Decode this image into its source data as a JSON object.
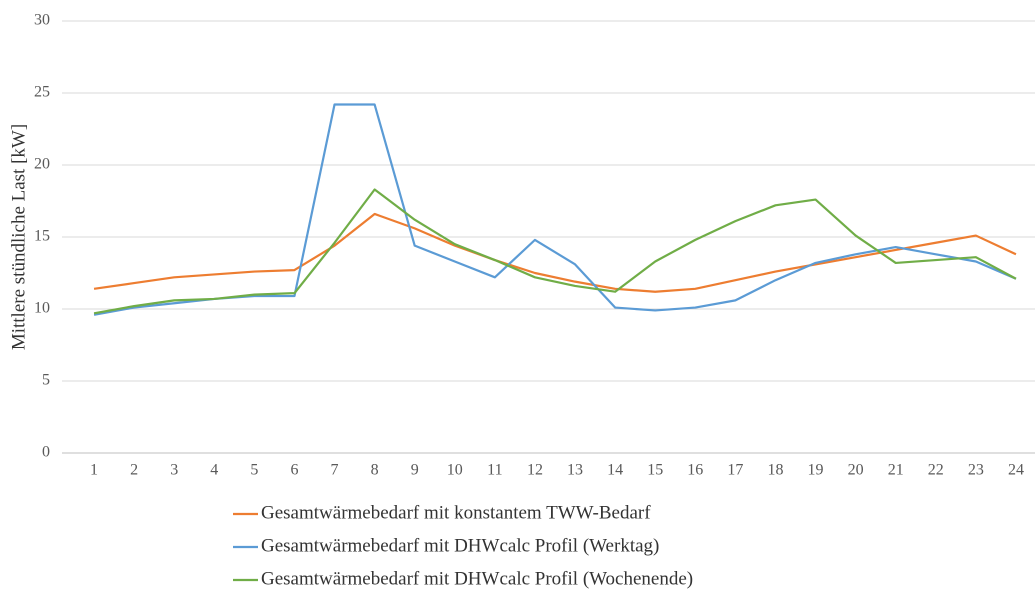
{
  "chart_data": {
    "type": "line",
    "y_label": "Mittlere stündliche Last [kW]",
    "categories": [
      "1",
      "2",
      "3",
      "4",
      "5",
      "6",
      "7",
      "8",
      "9",
      "10",
      "11",
      "12",
      "13",
      "14",
      "15",
      "16",
      "17",
      "18",
      "19",
      "20",
      "21",
      "22",
      "23",
      "24"
    ],
    "series": [
      {
        "name": "Gesamtwärmebedarf mit konstantem TWW-Bedarf",
        "color": "#ed7d31",
        "values": [
          11.4,
          11.8,
          12.2,
          12.4,
          12.6,
          12.7,
          14.4,
          16.6,
          15.6,
          14.4,
          13.4,
          12.5,
          11.9,
          11.4,
          11.2,
          11.4,
          12.0,
          12.6,
          13.1,
          13.6,
          14.1,
          14.6,
          15.1,
          13.8
        ]
      },
      {
        "name": "Gesamtwärmebedarf mit DHWcalc Profil (Werktag)",
        "color": "#5b9bd5",
        "values": [
          9.6,
          10.1,
          10.4,
          10.7,
          10.9,
          10.9,
          24.2,
          24.2,
          14.4,
          13.3,
          12.2,
          14.8,
          13.1,
          10.1,
          9.9,
          10.1,
          10.6,
          12.0,
          13.2,
          13.8,
          14.3,
          13.8,
          13.3,
          12.1
        ]
      },
      {
        "name": "Gesamtwärmebedarf mit DHWcalc Profil (Wochenende)",
        "color": "#70ad47",
        "values": [
          9.7,
          10.2,
          10.6,
          10.7,
          11.0,
          11.1,
          14.6,
          18.3,
          16.2,
          14.5,
          13.4,
          12.2,
          11.6,
          11.2,
          13.3,
          14.8,
          16.1,
          17.2,
          17.6,
          15.1,
          13.2,
          13.4,
          13.6,
          12.1
        ]
      }
    ],
    "ylim": [
      0,
      30
    ],
    "yticks": [
      0,
      5,
      10,
      15,
      20,
      25,
      30
    ],
    "grid": true
  }
}
